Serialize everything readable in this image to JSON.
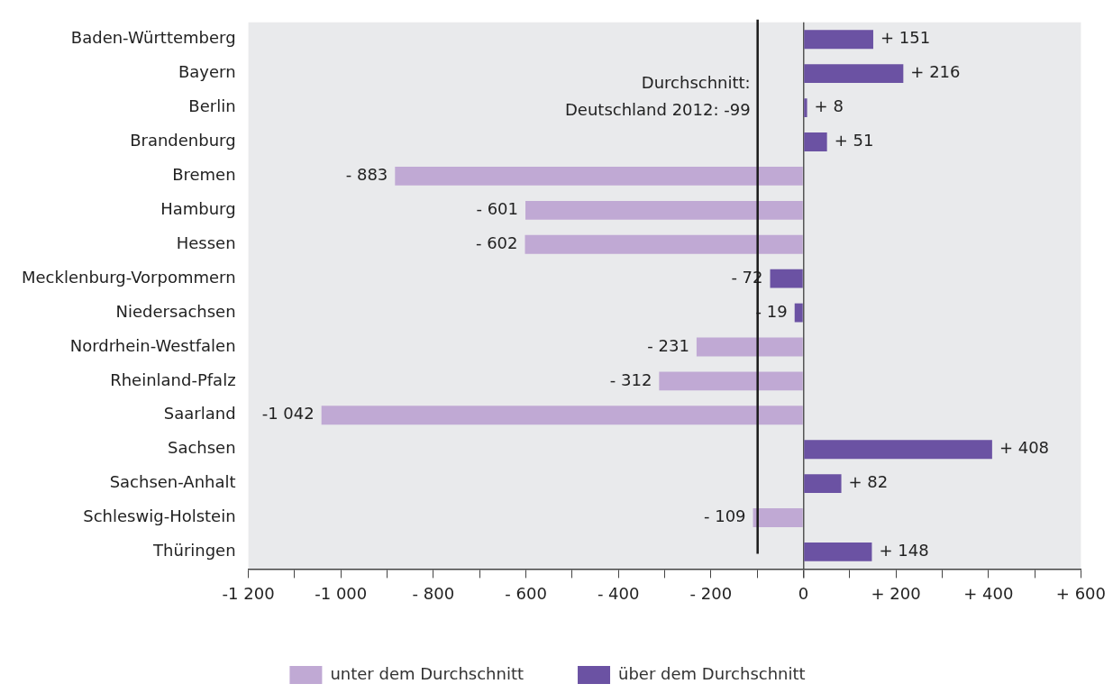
{
  "chart_data": {
    "type": "bar",
    "orientation": "horizontal",
    "categories": [
      "Baden-Württemberg",
      "Bayern",
      "Berlin",
      "Brandenburg",
      "Bremen",
      "Hamburg",
      "Hessen",
      "Mecklenburg-Vorpommern",
      "Niedersachsen",
      "Nordrhein-Westfalen",
      "Rheinland-Pfalz",
      "Saarland",
      "Sachsen",
      "Sachsen-Anhalt",
      "Schleswig-Holstein",
      "Thüringen"
    ],
    "series": [
      {
        "name": "unter dem Durchschnitt",
        "color": "#c0a9d4",
        "values": [
          null,
          null,
          null,
          null,
          -883,
          -601,
          -602,
          null,
          null,
          -231,
          -312,
          -1042,
          null,
          null,
          -109,
          null
        ],
        "value_labels": [
          null,
          null,
          null,
          null,
          "- 883",
          "- 601",
          "- 602",
          null,
          null,
          "- 231",
          "- 312",
          "-1 042",
          null,
          null,
          "- 109",
          null
        ]
      },
      {
        "name": "über dem Durchschnitt",
        "color": "#6b52a3",
        "values": [
          151,
          216,
          8,
          51,
          null,
          null,
          null,
          -72,
          -19,
          null,
          null,
          null,
          408,
          82,
          null,
          148
        ],
        "value_labels": [
          "+ 151",
          "+ 216",
          "+ 8",
          "+ 51",
          null,
          null,
          null,
          "- 72",
          "- 19",
          null,
          null,
          null,
          "+ 408",
          "+ 82",
          null,
          "+ 148"
        ]
      }
    ],
    "xlim": [
      -1200,
      600
    ],
    "xticks": [
      {
        "value": -1200,
        "label": "-1 200"
      },
      {
        "value": -1100,
        "label": null
      },
      {
        "value": -1000,
        "label": "-1 000"
      },
      {
        "value": -900,
        "label": null
      },
      {
        "value": -800,
        "label": "- 800"
      },
      {
        "value": -700,
        "label": null
      },
      {
        "value": -600,
        "label": "- 600"
      },
      {
        "value": -500,
        "label": null
      },
      {
        "value": -400,
        "label": "- 400"
      },
      {
        "value": -300,
        "label": null
      },
      {
        "value": -200,
        "label": "- 200"
      },
      {
        "value": -100,
        "label": null
      },
      0,
      {
        "value": 100,
        "label": null
      },
      {
        "value": 200,
        "label": "+ 200"
      },
      {
        "value": 300,
        "label": null
      },
      {
        "value": 400,
        "label": "+ 400"
      },
      {
        "value": 500,
        "label": null
      },
      {
        "value": 600,
        "label": "+ 600"
      }
    ],
    "ref_lines": [
      {
        "axis": "x",
        "value": -99,
        "label": "Durchschnitt:\nDeutschland 2012: -99",
        "color": "#1a1a1a"
      }
    ],
    "legend": "bottom",
    "grid": false
  }
}
